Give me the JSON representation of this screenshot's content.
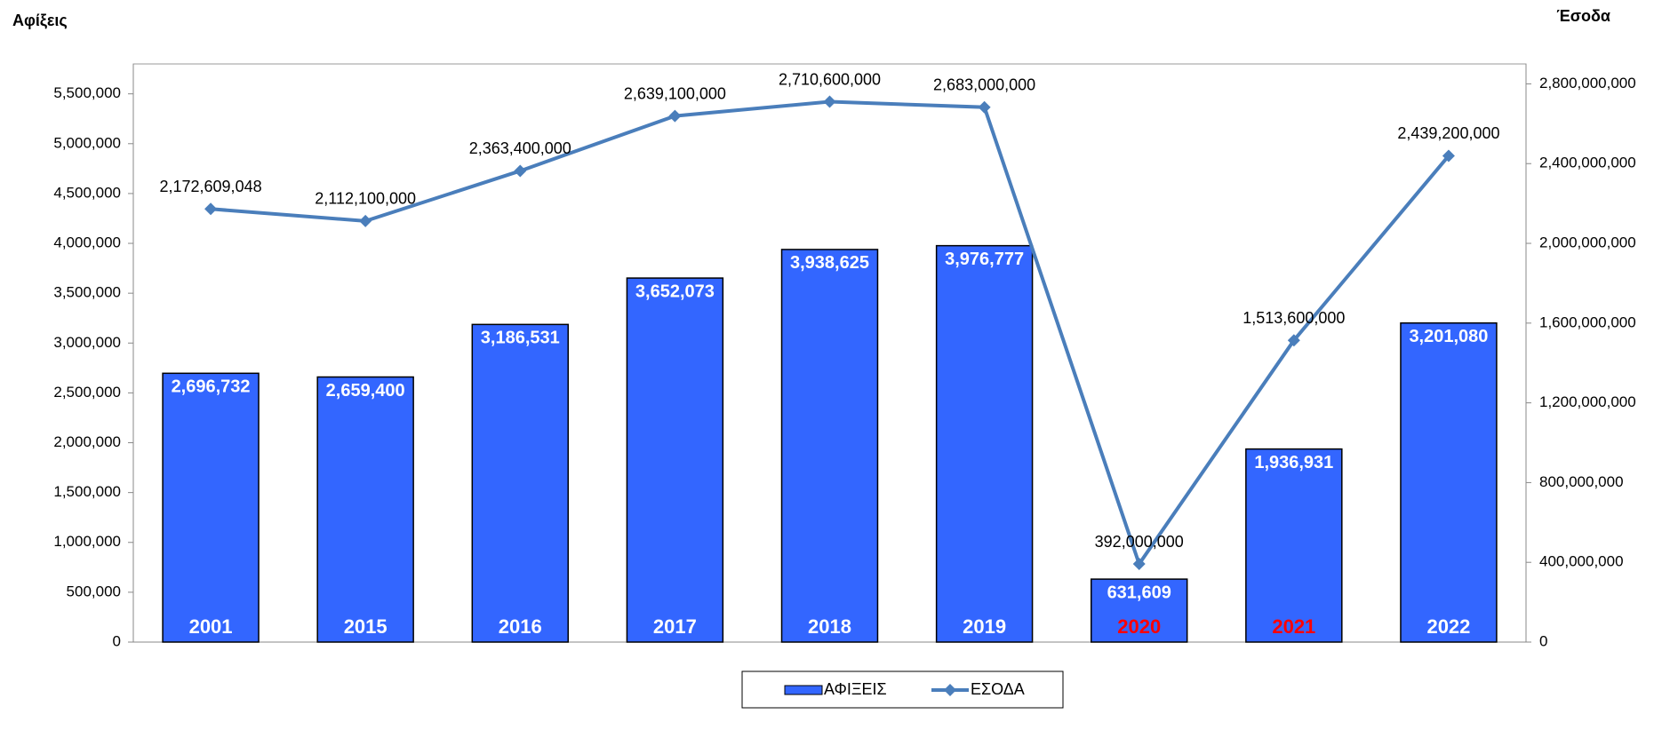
{
  "chart_data": {
    "type": "bar-line",
    "y_axis_title": "Αφίξεις",
    "y2_axis_title": "Έσοδα",
    "categories": [
      "2001",
      "2015",
      "2016",
      "2017",
      "2018",
      "2019",
      "2020",
      "2021",
      "2022"
    ],
    "category_colors": [
      "#ffffff",
      "#ffffff",
      "#ffffff",
      "#ffffff",
      "#ffffff",
      "#ffffff",
      "#ff0000",
      "#ff0000",
      "#ffffff"
    ],
    "series": [
      {
        "name": "ΑΦΙΞΕΙΣ",
        "type": "bar",
        "color": "#3366ff",
        "values": [
          2696732,
          2659400,
          3186531,
          3652073,
          3938625,
          3976777,
          631609,
          1936931,
          3201080
        ],
        "value_labels": [
          "2,696,732",
          "2,659,400",
          "3,186,531",
          "3,652,073",
          "3,938,625",
          "3,976,777",
          "631,609",
          "1,936,931",
          "3,201,080"
        ]
      },
      {
        "name": "ΕΣΟΔΑ",
        "type": "line",
        "axis": "y2",
        "color": "#4a7ebb",
        "values": [
          2172609048,
          2112100000,
          2363400000,
          2639100000,
          2710600000,
          2683000000,
          392000000,
          1513600000,
          2439200000
        ],
        "value_labels": [
          "2,172,609,048",
          "2,112,100,000",
          "2,363,400,000",
          "2,639,100,000",
          "2,710,600,000",
          "2,683,000,000",
          "392,000,000",
          "1,513,600,000",
          "2,439,200,000"
        ]
      }
    ],
    "ylim": [
      0,
      5800000
    ],
    "yticks": [
      0,
      {
        "value": 500000,
        "label": "500,000"
      },
      {
        "value": 1000000,
        "label": "1,000,000"
      },
      {
        "value": 1500000,
        "label": "1,500,000"
      },
      {
        "value": 2000000,
        "label": "2,000,000"
      },
      {
        "value": 2500000,
        "label": "2,500,000"
      },
      {
        "value": 3000000,
        "label": "3,000,000"
      },
      {
        "value": 3500000,
        "label": "3,500,000"
      },
      {
        "value": 4000000,
        "label": "4,000,000"
      },
      {
        "value": 4500000,
        "label": "4,500,000"
      },
      {
        "value": 5000000,
        "label": "5,000,000"
      },
      {
        "value": 5500000,
        "label": "5,500,000"
      }
    ],
    "y2lim": [
      0,
      2900000000
    ],
    "y2ticks": [
      0,
      {
        "value": 400000000,
        "label": "400,000,000"
      },
      {
        "value": 800000000,
        "label": "800,000,000"
      },
      {
        "value": 1200000000,
        "label": "1,200,000,000"
      },
      {
        "value": 1600000000,
        "label": "1,600,000,000"
      },
      {
        "value": 2000000000,
        "label": "2,000,000,000"
      },
      {
        "value": 2400000000,
        "label": "2,400,000,000"
      },
      {
        "value": 2800000000,
        "label": "2,800,000,000"
      }
    ],
    "grid": false,
    "legend": "bottom"
  }
}
